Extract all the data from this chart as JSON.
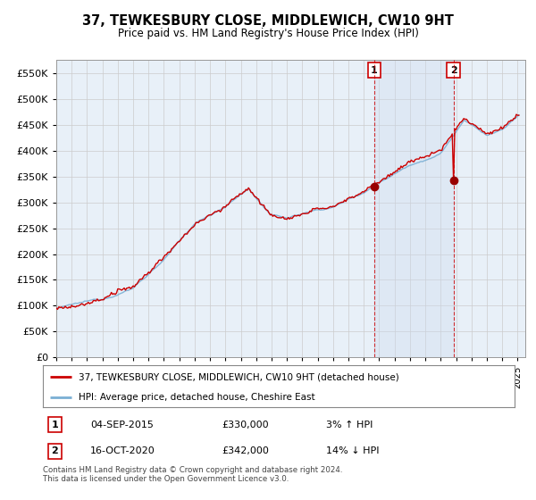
{
  "title": "37, TEWKESBURY CLOSE, MIDDLEWICH, CW10 9HT",
  "subtitle": "Price paid vs. HM Land Registry's House Price Index (HPI)",
  "ylim": [
    0,
    575000
  ],
  "yticks": [
    0,
    50000,
    100000,
    150000,
    200000,
    250000,
    300000,
    350000,
    400000,
    450000,
    500000,
    550000
  ],
  "background_color": "#ffffff",
  "plot_bg_color": "#e8f0f8",
  "grid_color": "#cccccc",
  "hpi_color": "#7aafd4",
  "price_color": "#cc0000",
  "marker_color": "#990000",
  "shade_color": "#ccdaee",
  "legend_label_price": "37, TEWKESBURY CLOSE, MIDDLEWICH, CW10 9HT (detached house)",
  "legend_label_hpi": "HPI: Average price, detached house, Cheshire East",
  "annotation1_label": "1",
  "annotation1_date": "04-SEP-2015",
  "annotation1_price": "£330,000",
  "annotation1_pct": "3% ↑ HPI",
  "annotation1_year": 2015.67,
  "annotation1_value": 330000,
  "annotation2_label": "2",
  "annotation2_date": "16-OCT-2020",
  "annotation2_price": "£342,000",
  "annotation2_pct": "14% ↓ HPI",
  "annotation2_year": 2020.83,
  "annotation2_value": 342000,
  "copyright_text": "Contains HM Land Registry data © Crown copyright and database right 2024.\nThis data is licensed under the Open Government Licence v3.0.",
  "xmin": 1995,
  "xmax": 2025.5
}
